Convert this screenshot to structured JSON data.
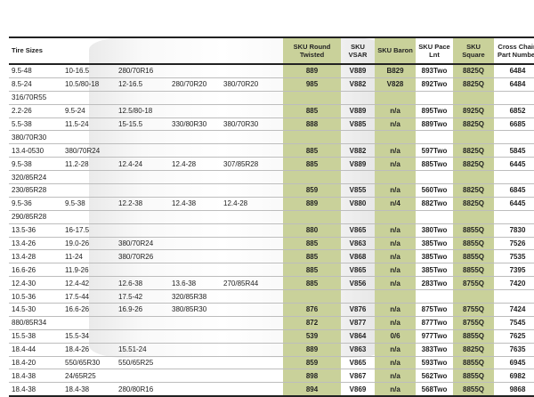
{
  "headers": {
    "tire_sizes": "Tire Sizes",
    "sku_round": "SKU Round Twisted",
    "sku_vsar": "SKU VSAR",
    "sku_baron": "SKU Baron",
    "sku_pace": "SKU Pace Lnt",
    "sku_square": "SKU Square",
    "cross_chain": "Cross Chain Part Number"
  },
  "rows": [
    {
      "s1": "9.5-48",
      "s2": "10-16.5",
      "s3": "280/70R16",
      "s4": "",
      "s5": "",
      "r": "889",
      "v": "V889",
      "b": "B829",
      "p": "893Two",
      "q": "8825Q",
      "n": "6484"
    },
    {
      "s1": "8.5-24",
      "s2": "10.5/80-18",
      "s3": "12-16.5",
      "s4": "280/70R20",
      "s5": "380/70R20",
      "r": "985",
      "v": "V882",
      "b": "V828",
      "p": "892Two",
      "q": "8825Q",
      "n": "6484"
    },
    {
      "s1": "316/70R55",
      "s2": "",
      "s3": "",
      "s4": "",
      "s5": "",
      "r": "",
      "v": "",
      "b": "",
      "p": "",
      "q": "",
      "n": ""
    },
    {
      "s1": "2.2-26",
      "s2": "9.5-24",
      "s3": "12.5/80-18",
      "s4": "",
      "s5": "",
      "r": "885",
      "v": "V889",
      "b": "n/a",
      "p": "895Two",
      "q": "8925Q",
      "n": "6852"
    },
    {
      "s1": "5.5-38",
      "s2": "11.5-24",
      "s3": "15-15.5",
      "s4": "330/80R30",
      "s5": "380/70R30",
      "r": "888",
      "v": "V885",
      "b": "n/a",
      "p": "889Two",
      "q": "8825Q",
      "n": "6685"
    },
    {
      "s1": "380/70R30",
      "s2": "",
      "s3": "",
      "s4": "",
      "s5": "",
      "r": "",
      "v": "",
      "b": "",
      "p": "",
      "q": "",
      "n": ""
    },
    {
      "s1": "13.4-0530",
      "s2": "380/70R24",
      "s3": "",
      "s4": "",
      "s5": "",
      "r": "885",
      "v": "V882",
      "b": "n/a",
      "p": "597Two",
      "q": "8825Q",
      "n": "5845"
    },
    {
      "s1": "9.5-38",
      "s2": "11.2-28",
      "s3": "12.4-24",
      "s4": "12.4-28",
      "s5": "307/85R28",
      "r": "885",
      "v": "V889",
      "b": "n/a",
      "p": "885Two",
      "q": "8825Q",
      "n": "6445"
    },
    {
      "s1": "320/85R24",
      "s2": "",
      "s3": "",
      "s4": "",
      "s5": "",
      "r": "",
      "v": "",
      "b": "",
      "p": "",
      "q": "",
      "n": ""
    },
    {
      "s1": "230/85R28",
      "s2": "",
      "s3": "",
      "s4": "",
      "s5": "",
      "r": "859",
      "v": "V855",
      "b": "n/a",
      "p": "560Two",
      "q": "8825Q",
      "n": "6845"
    },
    {
      "s1": "9.5-36",
      "s2": "9.5-38",
      "s3": "12.2-38",
      "s4": "12.4-38",
      "s5": "12.4-28",
      "r": "889",
      "v": "V880",
      "b": "n/4",
      "p": "882Two",
      "q": "8825Q",
      "n": "6445"
    },
    {
      "s1": "290/85R28",
      "s2": "",
      "s3": "",
      "s4": "",
      "s5": "",
      "r": "",
      "v": "",
      "b": "",
      "p": "",
      "q": "",
      "n": ""
    },
    {
      "s1": "13.5-36",
      "s2": "16-17.5",
      "s3": "",
      "s4": "",
      "s5": "",
      "r": "880",
      "v": "V865",
      "b": "n/a",
      "p": "380Two",
      "q": "8855Q",
      "n": "7830"
    },
    {
      "s1": "13.4-26",
      "s2": "19.0-26",
      "s3": "380/70R24",
      "s4": "",
      "s5": "",
      "r": "885",
      "v": "V863",
      "b": "n/a",
      "p": "385Two",
      "q": "8855Q",
      "n": "7526"
    },
    {
      "s1": "13.4-28",
      "s2": "11-24",
      "s3": "380/70R26",
      "s4": "",
      "s5": "",
      "r": "885",
      "v": "V868",
      "b": "n/a",
      "p": "385Two",
      "q": "8855Q",
      "n": "7535"
    },
    {
      "s1": "16.6-26",
      "s2": "11.9-26",
      "s3": "",
      "s4": "",
      "s5": "",
      "r": "885",
      "v": "V865",
      "b": "n/a",
      "p": "385Two",
      "q": "8855Q",
      "n": "7395"
    },
    {
      "s1": "12.4-30",
      "s2": "12.4-42",
      "s3": "12.6-38",
      "s4": "13.6-38",
      "s5": "270/85R44",
      "r": "885",
      "v": "V856",
      "b": "n/a",
      "p": "283Two",
      "q": "8755Q",
      "n": "7420"
    },
    {
      "s1": "10.5-36",
      "s2": "17.5-44",
      "s3": "17.5-42",
      "s4": "320/85R38",
      "s5": "",
      "r": "",
      "v": "",
      "b": "",
      "p": "",
      "q": "",
      "n": ""
    },
    {
      "s1": "14.5-30",
      "s2": "16.6-26",
      "s3": "16.9-26",
      "s4": "380/85R30",
      "s5": "",
      "r": "876",
      "v": "V876",
      "b": "n/a",
      "p": "875Two",
      "q": "8755Q",
      "n": "7424"
    },
    {
      "s1": "880/85R34",
      "s2": "",
      "s3": "",
      "s4": "",
      "s5": "",
      "r": "872",
      "v": "V877",
      "b": "n/a",
      "p": "877Two",
      "q": "8755Q",
      "n": "7545"
    },
    {
      "s1": "15.5-38",
      "s2": "15.5-34",
      "s3": "",
      "s4": "",
      "s5": "",
      "r": "539",
      "v": "V864",
      "b": "0/6",
      "p": "977Two",
      "q": "8855Q",
      "n": "7625"
    },
    {
      "s1": "18.4-44",
      "s2": "18.4-26",
      "s3": "15.51-24",
      "s4": "",
      "s5": "",
      "r": "889",
      "v": "V863",
      "b": "n/a",
      "p": "383Two",
      "q": "8825Q",
      "n": "7635"
    },
    {
      "s1": "18.4-20",
      "s2": "550/65R30",
      "s3": "550/65R25",
      "s4": "",
      "s5": "",
      "r": "859",
      "v": "V865",
      "b": "n/a",
      "p": "593Two",
      "q": "8855Q",
      "n": "6945"
    },
    {
      "s1": "18.4-38",
      "s2": "24/65R25",
      "s3": "",
      "s4": "",
      "s5": "",
      "r": "898",
      "v": "V867",
      "b": "n/a",
      "p": "562Two",
      "q": "8855Q",
      "n": "6982"
    },
    {
      "s1": "18.4-38",
      "s2": "18.4-38",
      "s3": "280/80R16",
      "s4": "",
      "s5": "",
      "r": "894",
      "v": "V869",
      "b": "n/a",
      "p": "568Two",
      "q": "8855Q",
      "n": "9868"
    }
  ]
}
